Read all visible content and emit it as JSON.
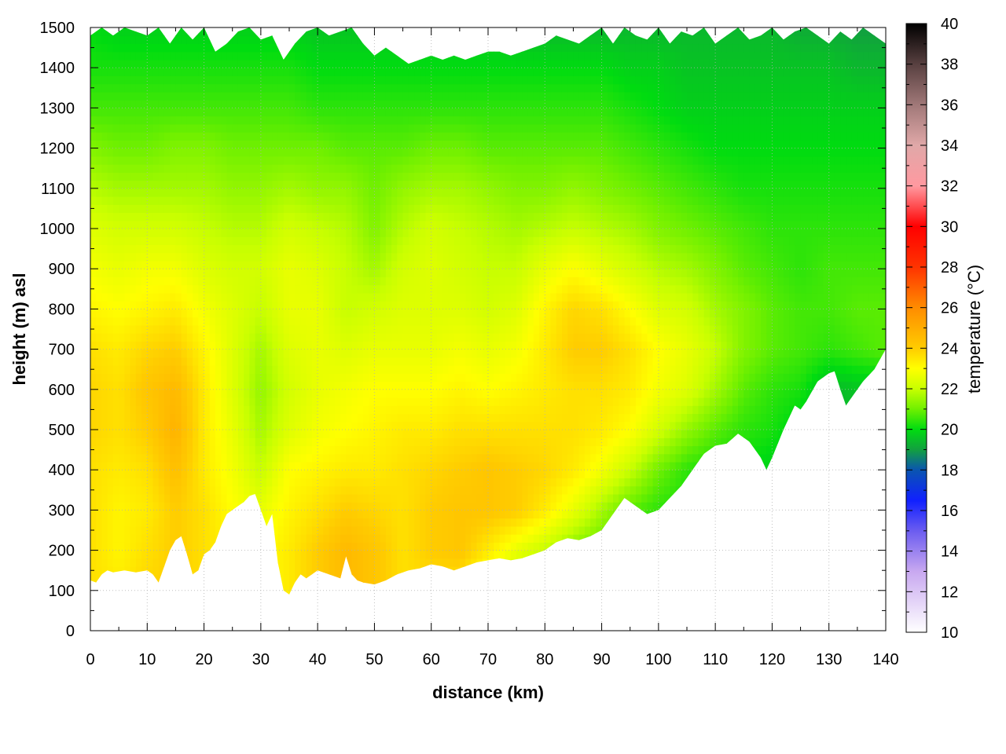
{
  "chart_data": {
    "type": "heatmap",
    "title": "",
    "xlabel": "distance (km)",
    "ylabel": "height (m) asl",
    "colorbar_label": "temperature (°C)",
    "xlim": [
      0,
      140
    ],
    "ylim": [
      0,
      1500
    ],
    "zlim": [
      10,
      40
    ],
    "grid": true,
    "x_ticks": [
      0,
      10,
      20,
      30,
      40,
      50,
      60,
      70,
      80,
      90,
      100,
      110,
      120,
      130,
      140
    ],
    "y_ticks": [
      0,
      100,
      200,
      300,
      400,
      500,
      600,
      700,
      800,
      900,
      1000,
      1100,
      1200,
      1300,
      1400,
      1500
    ],
    "z_ticks": [
      10,
      12,
      14,
      16,
      18,
      20,
      22,
      24,
      26,
      28,
      30,
      32,
      34,
      36,
      38,
      40
    ],
    "colormap": [
      {
        "t": 10,
        "color": "#ffffff"
      },
      {
        "t": 13,
        "color": "#c8a8f0"
      },
      {
        "t": 15,
        "color": "#6b5cf0"
      },
      {
        "t": 16.5,
        "color": "#1020ff"
      },
      {
        "t": 18,
        "color": "#0a55b0"
      },
      {
        "t": 19,
        "color": "#12a040"
      },
      {
        "t": 20,
        "color": "#00dc10"
      },
      {
        "t": 21,
        "color": "#70f000"
      },
      {
        "t": 22,
        "color": "#c8ff00"
      },
      {
        "t": 23,
        "color": "#ffff00"
      },
      {
        "t": 24,
        "color": "#ffcc00"
      },
      {
        "t": 26,
        "color": "#ff8c00"
      },
      {
        "t": 28,
        "color": "#ff3300"
      },
      {
        "t": 30,
        "color": "#ff0000"
      },
      {
        "t": 32,
        "color": "#ff99a0"
      },
      {
        "t": 34,
        "color": "#e0a8a8"
      },
      {
        "t": 36,
        "color": "#a07878"
      },
      {
        "t": 38,
        "color": "#584040"
      },
      {
        "t": 40,
        "color": "#000000"
      }
    ],
    "terrain": {
      "x": [
        0,
        1,
        2,
        3,
        4,
        6,
        8,
        10,
        11,
        12,
        13,
        14,
        15,
        16,
        17,
        18,
        19,
        20,
        21,
        22,
        23,
        24,
        25,
        26,
        27,
        28,
        29,
        30,
        31,
        32,
        33,
        34,
        35,
        36,
        37,
        38,
        40,
        42,
        44,
        45,
        46,
        47,
        48,
        50,
        52,
        54,
        56,
        58,
        60,
        62,
        64,
        66,
        68,
        70,
        72,
        74,
        76,
        78,
        80,
        82,
        84,
        86,
        88,
        90,
        92,
        94,
        96,
        98,
        100,
        102,
        104,
        106,
        108,
        110,
        112,
        114,
        116,
        118,
        119,
        120,
        122,
        124,
        125,
        126,
        128,
        130,
        131,
        132,
        133,
        134,
        136,
        138,
        140
      ],
      "height": [
        125,
        120,
        140,
        150,
        145,
        150,
        145,
        150,
        140,
        120,
        160,
        200,
        225,
        235,
        190,
        140,
        150,
        190,
        200,
        220,
        260,
        290,
        300,
        310,
        320,
        335,
        340,
        300,
        260,
        290,
        170,
        100,
        90,
        120,
        140,
        130,
        150,
        140,
        130,
        185,
        140,
        125,
        120,
        115,
        125,
        140,
        150,
        155,
        165,
        160,
        150,
        160,
        170,
        175,
        180,
        175,
        180,
        190,
        200,
        220,
        230,
        225,
        235,
        250,
        290,
        330,
        310,
        290,
        300,
        330,
        360,
        400,
        440,
        460,
        465,
        490,
        470,
        430,
        400,
        430,
        500,
        560,
        550,
        570,
        620,
        640,
        645,
        600,
        560,
        580,
        620,
        650,
        700
      ]
    },
    "top_edge": {
      "x": [
        0,
        2,
        4,
        6,
        8,
        10,
        12,
        14,
        16,
        18,
        20,
        22,
        24,
        26,
        28,
        30,
        32,
        34,
        36,
        38,
        40,
        42,
        44,
        46,
        48,
        50,
        52,
        54,
        56,
        58,
        60,
        62,
        64,
        66,
        68,
        70,
        72,
        74,
        76,
        78,
        80,
        82,
        84,
        86,
        88,
        90,
        92,
        94,
        96,
        98,
        100,
        102,
        104,
        106,
        108,
        110,
        112,
        114,
        116,
        118,
        120,
        122,
        124,
        126,
        128,
        130,
        132,
        134,
        136,
        138,
        140
      ],
      "height": [
        1480,
        1500,
        1480,
        1500,
        1490,
        1480,
        1500,
        1460,
        1500,
        1470,
        1500,
        1440,
        1460,
        1490,
        1500,
        1470,
        1480,
        1420,
        1460,
        1490,
        1500,
        1480,
        1490,
        1500,
        1460,
        1430,
        1450,
        1430,
        1410,
        1420,
        1430,
        1420,
        1430,
        1420,
        1430,
        1440,
        1440,
        1430,
        1440,
        1450,
        1460,
        1480,
        1470,
        1460,
        1480,
        1500,
        1460,
        1500,
        1480,
        1470,
        1500,
        1460,
        1490,
        1480,
        1500,
        1460,
        1480,
        1500,
        1470,
        1480,
        1500,
        1470,
        1490,
        1500,
        1480,
        1460,
        1490,
        1470,
        1500,
        1480,
        1460
      ]
    },
    "temperature_field": {
      "heights": [
        100,
        200,
        300,
        400,
        500,
        600,
        700,
        800,
        900,
        1000,
        1100,
        1200,
        1300,
        1400,
        1500
      ],
      "columns": [
        {
          "x": 0,
          "t": [
            23.6,
            23.6,
            23.6,
            23.6,
            23.8,
            23.8,
            23.6,
            23.2,
            22.8,
            22.4,
            21.8,
            21.2,
            20.6,
            20.2,
            20.0
          ]
        },
        {
          "x": 5,
          "t": [
            23.4,
            23.2,
            23.2,
            23.4,
            23.6,
            23.6,
            23.4,
            23.0,
            22.6,
            22.2,
            21.6,
            21.0,
            20.6,
            20.2,
            19.8
          ]
        },
        {
          "x": 10,
          "t": [
            23.8,
            23.6,
            23.4,
            23.6,
            24.0,
            24.2,
            23.8,
            23.2,
            22.8,
            22.2,
            21.6,
            21.0,
            20.6,
            20.2,
            19.8
          ]
        },
        {
          "x": 15,
          "t": [
            24.0,
            24.0,
            24.0,
            24.4,
            24.8,
            24.6,
            24.0,
            23.4,
            22.8,
            22.2,
            21.6,
            21.2,
            20.6,
            20.2,
            19.8
          ]
        },
        {
          "x": 20,
          "t": [
            23.6,
            23.6,
            23.6,
            23.4,
            23.4,
            23.4,
            23.2,
            22.8,
            22.4,
            22.0,
            21.6,
            21.2,
            20.6,
            20.2,
            19.8
          ]
        },
        {
          "x": 25,
          "t": [
            23.2,
            23.2,
            23.0,
            22.8,
            22.6,
            22.4,
            22.4,
            22.4,
            22.2,
            21.8,
            21.4,
            21.0,
            20.6,
            20.2,
            19.8
          ]
        },
        {
          "x": 30,
          "t": [
            23.0,
            23.0,
            22.6,
            22.0,
            21.6,
            21.4,
            21.6,
            22.0,
            22.2,
            21.8,
            21.4,
            21.0,
            20.6,
            20.2,
            19.8
          ]
        },
        {
          "x": 35,
          "t": [
            23.4,
            23.4,
            23.2,
            23.0,
            22.4,
            22.2,
            22.4,
            22.6,
            22.6,
            22.2,
            21.6,
            21.0,
            20.6,
            20.2,
            19.8
          ]
        },
        {
          "x": 40,
          "t": [
            24.0,
            24.0,
            23.6,
            23.2,
            22.8,
            22.6,
            22.6,
            22.6,
            22.4,
            22.0,
            21.4,
            21.0,
            20.4,
            20.0,
            19.6
          ]
        },
        {
          "x": 45,
          "t": [
            24.6,
            24.6,
            24.0,
            23.4,
            23.0,
            22.8,
            22.4,
            22.0,
            22.0,
            21.8,
            21.4,
            20.8,
            20.4,
            20.0,
            19.6
          ]
        },
        {
          "x": 50,
          "t": [
            24.2,
            24.2,
            23.8,
            23.4,
            23.2,
            23.0,
            22.6,
            22.2,
            21.6,
            21.2,
            21.0,
            20.8,
            20.4,
            20.0,
            19.6
          ]
        },
        {
          "x": 55,
          "t": [
            23.6,
            23.6,
            23.6,
            23.6,
            23.4,
            23.0,
            22.6,
            22.4,
            22.2,
            21.8,
            21.4,
            20.8,
            20.4,
            20.0,
            19.6
          ]
        },
        {
          "x": 60,
          "t": [
            23.6,
            24.0,
            24.0,
            23.8,
            23.4,
            23.0,
            22.6,
            22.4,
            22.4,
            22.2,
            21.6,
            21.0,
            20.4,
            20.0,
            19.6
          ]
        },
        {
          "x": 65,
          "t": [
            23.4,
            24.2,
            24.2,
            24.0,
            23.6,
            23.2,
            22.8,
            22.4,
            22.2,
            22.0,
            21.6,
            21.0,
            20.4,
            20.0,
            19.6
          ]
        },
        {
          "x": 70,
          "t": [
            22.4,
            23.4,
            24.2,
            24.2,
            23.6,
            23.0,
            22.6,
            22.2,
            22.0,
            21.8,
            21.4,
            20.8,
            20.4,
            20.0,
            19.6
          ]
        },
        {
          "x": 75,
          "t": [
            21.8,
            22.6,
            24.0,
            24.0,
            23.6,
            23.2,
            22.8,
            22.4,
            22.0,
            21.6,
            21.2,
            20.8,
            20.4,
            20.0,
            19.4
          ]
        },
        {
          "x": 80,
          "t": [
            21.4,
            22.0,
            23.4,
            23.8,
            23.6,
            23.4,
            23.4,
            23.2,
            22.6,
            21.8,
            21.2,
            20.8,
            20.4,
            20.0,
            19.4
          ]
        },
        {
          "x": 85,
          "t": [
            21.0,
            21.2,
            22.6,
            23.4,
            23.6,
            23.6,
            24.0,
            23.8,
            23.0,
            22.0,
            21.4,
            20.8,
            20.4,
            20.0,
            19.4
          ]
        },
        {
          "x": 90,
          "t": [
            20.8,
            20.8,
            21.6,
            22.8,
            23.4,
            23.6,
            24.0,
            23.6,
            22.6,
            21.8,
            21.2,
            20.8,
            20.4,
            20.0,
            19.4
          ]
        },
        {
          "x": 95,
          "t": [
            20.6,
            20.6,
            20.8,
            22.0,
            23.0,
            23.4,
            23.6,
            23.0,
            22.2,
            21.6,
            21.0,
            20.6,
            20.2,
            19.8,
            19.4
          ]
        },
        {
          "x": 100,
          "t": [
            20.4,
            20.4,
            20.4,
            21.0,
            22.2,
            22.8,
            23.0,
            22.4,
            21.8,
            21.2,
            20.8,
            20.4,
            20.0,
            19.8,
            19.4
          ]
        },
        {
          "x": 105,
          "t": [
            20.2,
            20.2,
            20.2,
            20.4,
            21.4,
            22.4,
            22.6,
            22.2,
            21.6,
            21.0,
            20.6,
            20.2,
            19.8,
            19.6,
            19.4
          ]
        },
        {
          "x": 110,
          "t": [
            20.0,
            20.0,
            20.0,
            20.2,
            20.8,
            21.6,
            22.0,
            21.6,
            21.2,
            20.8,
            20.4,
            20.0,
            19.8,
            19.6,
            19.4
          ]
        },
        {
          "x": 115,
          "t": [
            19.8,
            19.8,
            19.8,
            20.0,
            20.4,
            20.8,
            21.2,
            21.2,
            20.8,
            20.6,
            20.2,
            20.0,
            19.8,
            19.6,
            19.4
          ]
        },
        {
          "x": 120,
          "t": [
            19.8,
            19.8,
            19.8,
            19.8,
            20.2,
            20.4,
            20.8,
            20.8,
            20.6,
            20.4,
            20.2,
            20.0,
            19.8,
            19.6,
            19.4
          ]
        },
        {
          "x": 125,
          "t": [
            19.6,
            19.6,
            19.6,
            19.6,
            19.8,
            20.2,
            20.6,
            20.6,
            20.4,
            20.4,
            20.2,
            20.0,
            19.8,
            19.6,
            19.2
          ]
        },
        {
          "x": 130,
          "t": [
            19.2,
            19.2,
            19.2,
            19.2,
            19.4,
            19.4,
            20.4,
            20.6,
            20.6,
            20.4,
            20.2,
            20.0,
            19.8,
            19.6,
            19.2
          ]
        },
        {
          "x": 135,
          "t": [
            19.4,
            19.4,
            19.4,
            19.4,
            19.4,
            19.6,
            20.6,
            20.8,
            20.6,
            20.4,
            20.2,
            20.0,
            19.8,
            19.4,
            19.0
          ]
        },
        {
          "x": 140,
          "t": [
            19.4,
            19.4,
            19.4,
            19.4,
            19.4,
            19.6,
            20.8,
            20.8,
            20.6,
            20.4,
            20.2,
            20.0,
            19.8,
            19.4,
            19.0
          ]
        }
      ]
    }
  }
}
